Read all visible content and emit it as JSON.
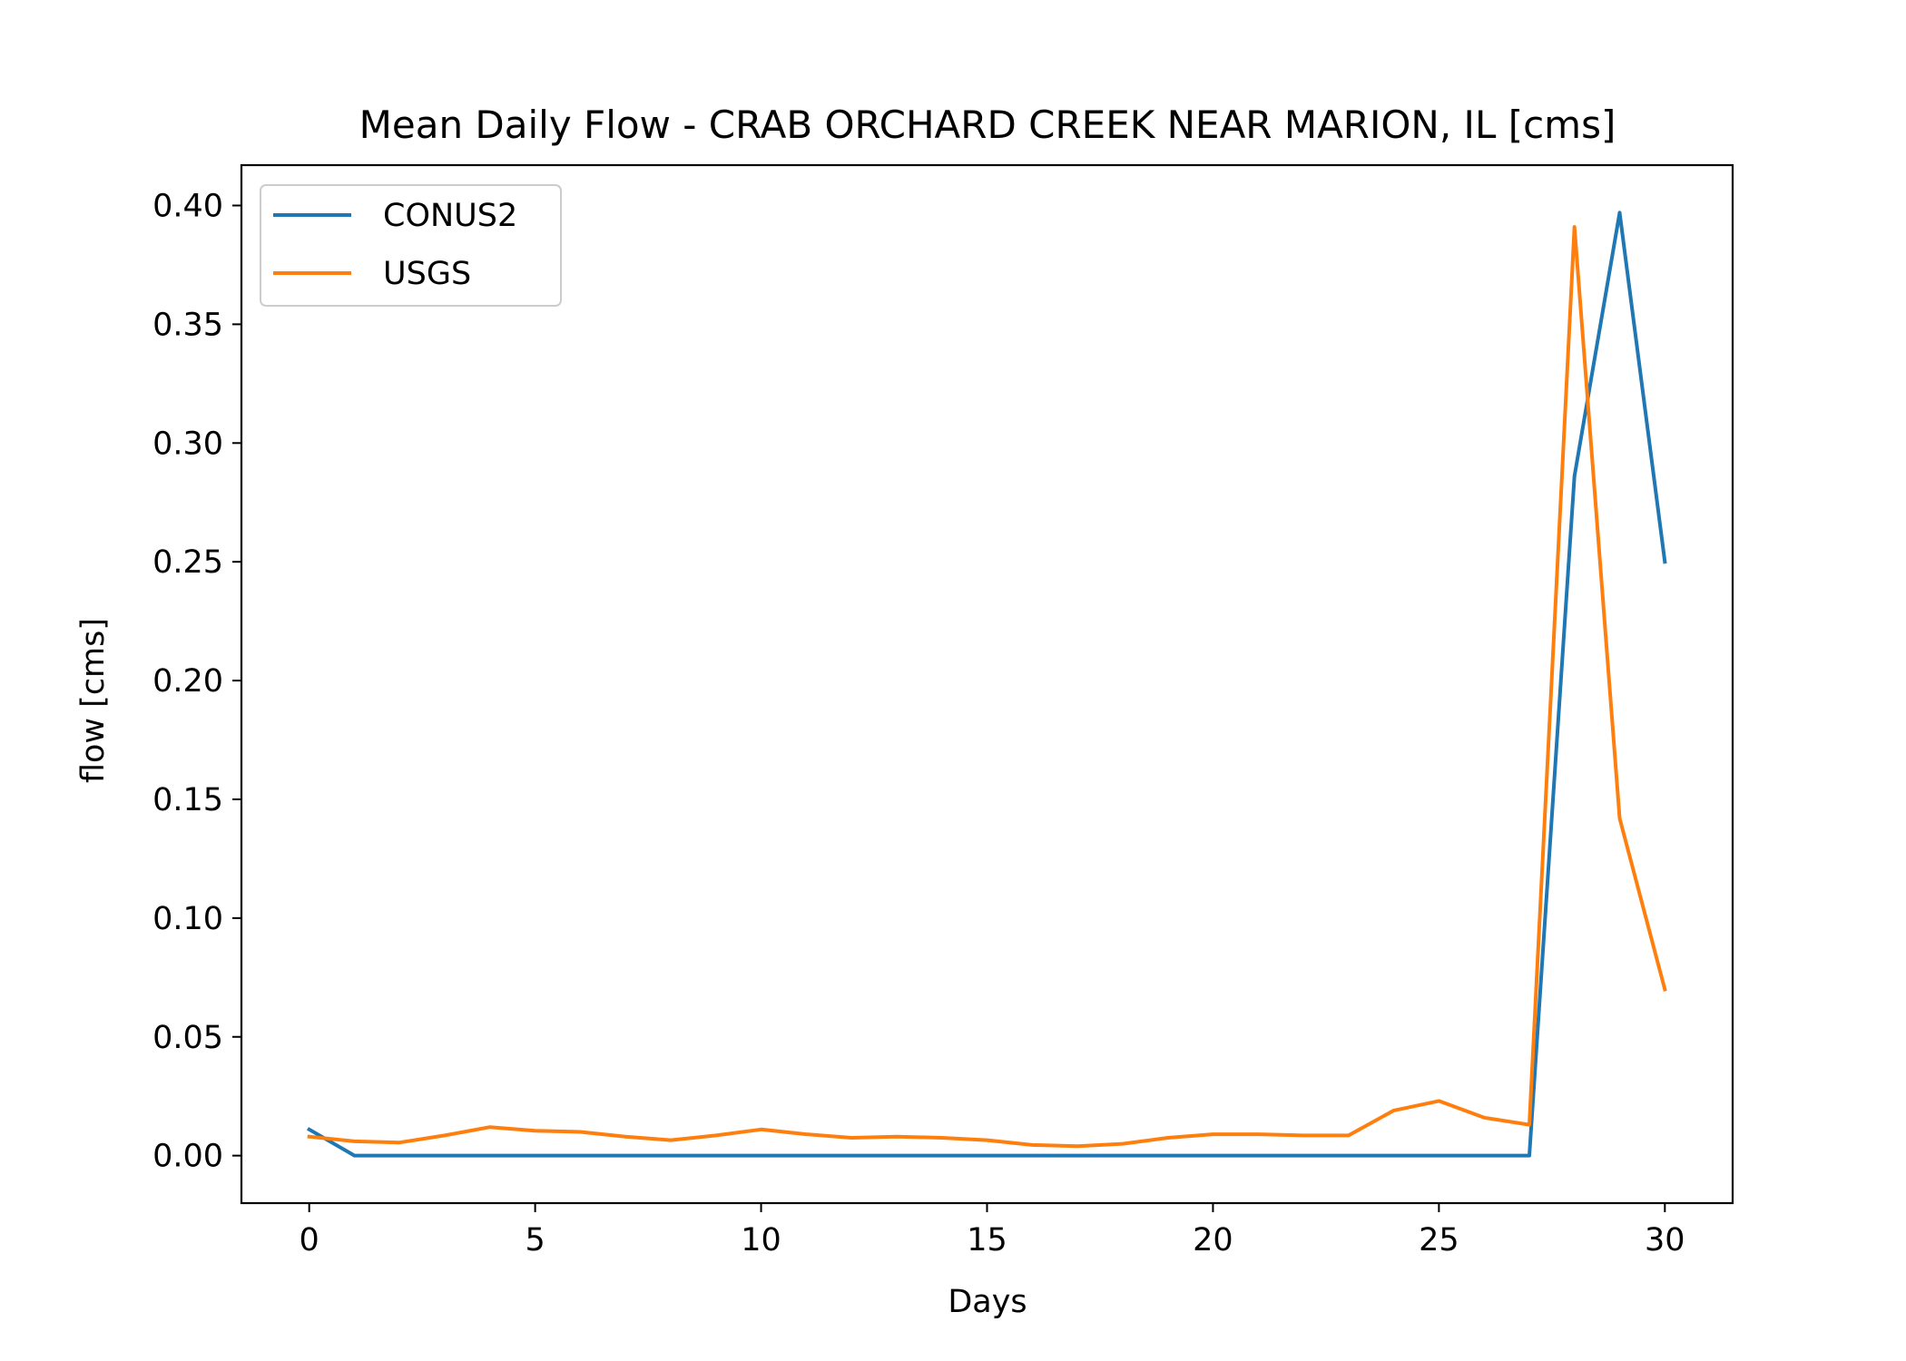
{
  "chart_data": {
    "type": "line",
    "title": "Mean Daily Flow - CRAB ORCHARD CREEK NEAR MARION, IL [cms]",
    "xlabel": "Days",
    "ylabel": "flow [cms]",
    "xlim": [
      -1.5,
      31.5
    ],
    "ylim": [
      -0.02,
      0.417
    ],
    "xticks": [
      0,
      5,
      10,
      15,
      20,
      25,
      30
    ],
    "xtick_labels": [
      "0",
      "5",
      "10",
      "15",
      "20",
      "25",
      "30"
    ],
    "yticks": [
      0.0,
      0.05,
      0.1,
      0.15,
      0.2,
      0.25,
      0.3,
      0.35,
      0.4
    ],
    "ytick_labels": [
      "0.00",
      "0.05",
      "0.10",
      "0.15",
      "0.20",
      "0.25",
      "0.30",
      "0.35",
      "0.40"
    ],
    "grid": false,
    "legend_position": "top-left",
    "x": [
      0,
      1,
      2,
      3,
      4,
      5,
      6,
      7,
      8,
      9,
      10,
      11,
      12,
      13,
      14,
      15,
      16,
      17,
      18,
      19,
      20,
      21,
      22,
      23,
      24,
      25,
      26,
      27,
      28,
      29,
      30
    ],
    "series": [
      {
        "name": "CONUS2",
        "color": "#1f77b4",
        "values": [
          0.011,
          0.0,
          0.0,
          0.0,
          0.0,
          0.0,
          0.0,
          0.0,
          0.0,
          0.0,
          0.0,
          0.0,
          0.0,
          0.0,
          0.0,
          0.0,
          0.0,
          0.0,
          0.0,
          0.0,
          0.0,
          0.0,
          0.0,
          0.0,
          0.0,
          0.0,
          0.0,
          0.0,
          0.286,
          0.397,
          0.25
        ]
      },
      {
        "name": "USGS",
        "color": "#ff7f0e",
        "values": [
          0.008,
          0.006,
          0.0055,
          0.0085,
          0.012,
          0.0105,
          0.01,
          0.008,
          0.0065,
          0.0085,
          0.011,
          0.009,
          0.0075,
          0.008,
          0.0075,
          0.0065,
          0.0045,
          0.004,
          0.005,
          0.0075,
          0.009,
          0.009,
          0.0085,
          0.0085,
          0.019,
          0.023,
          0.016,
          0.013,
          0.391,
          0.142,
          0.07
        ]
      }
    ]
  }
}
